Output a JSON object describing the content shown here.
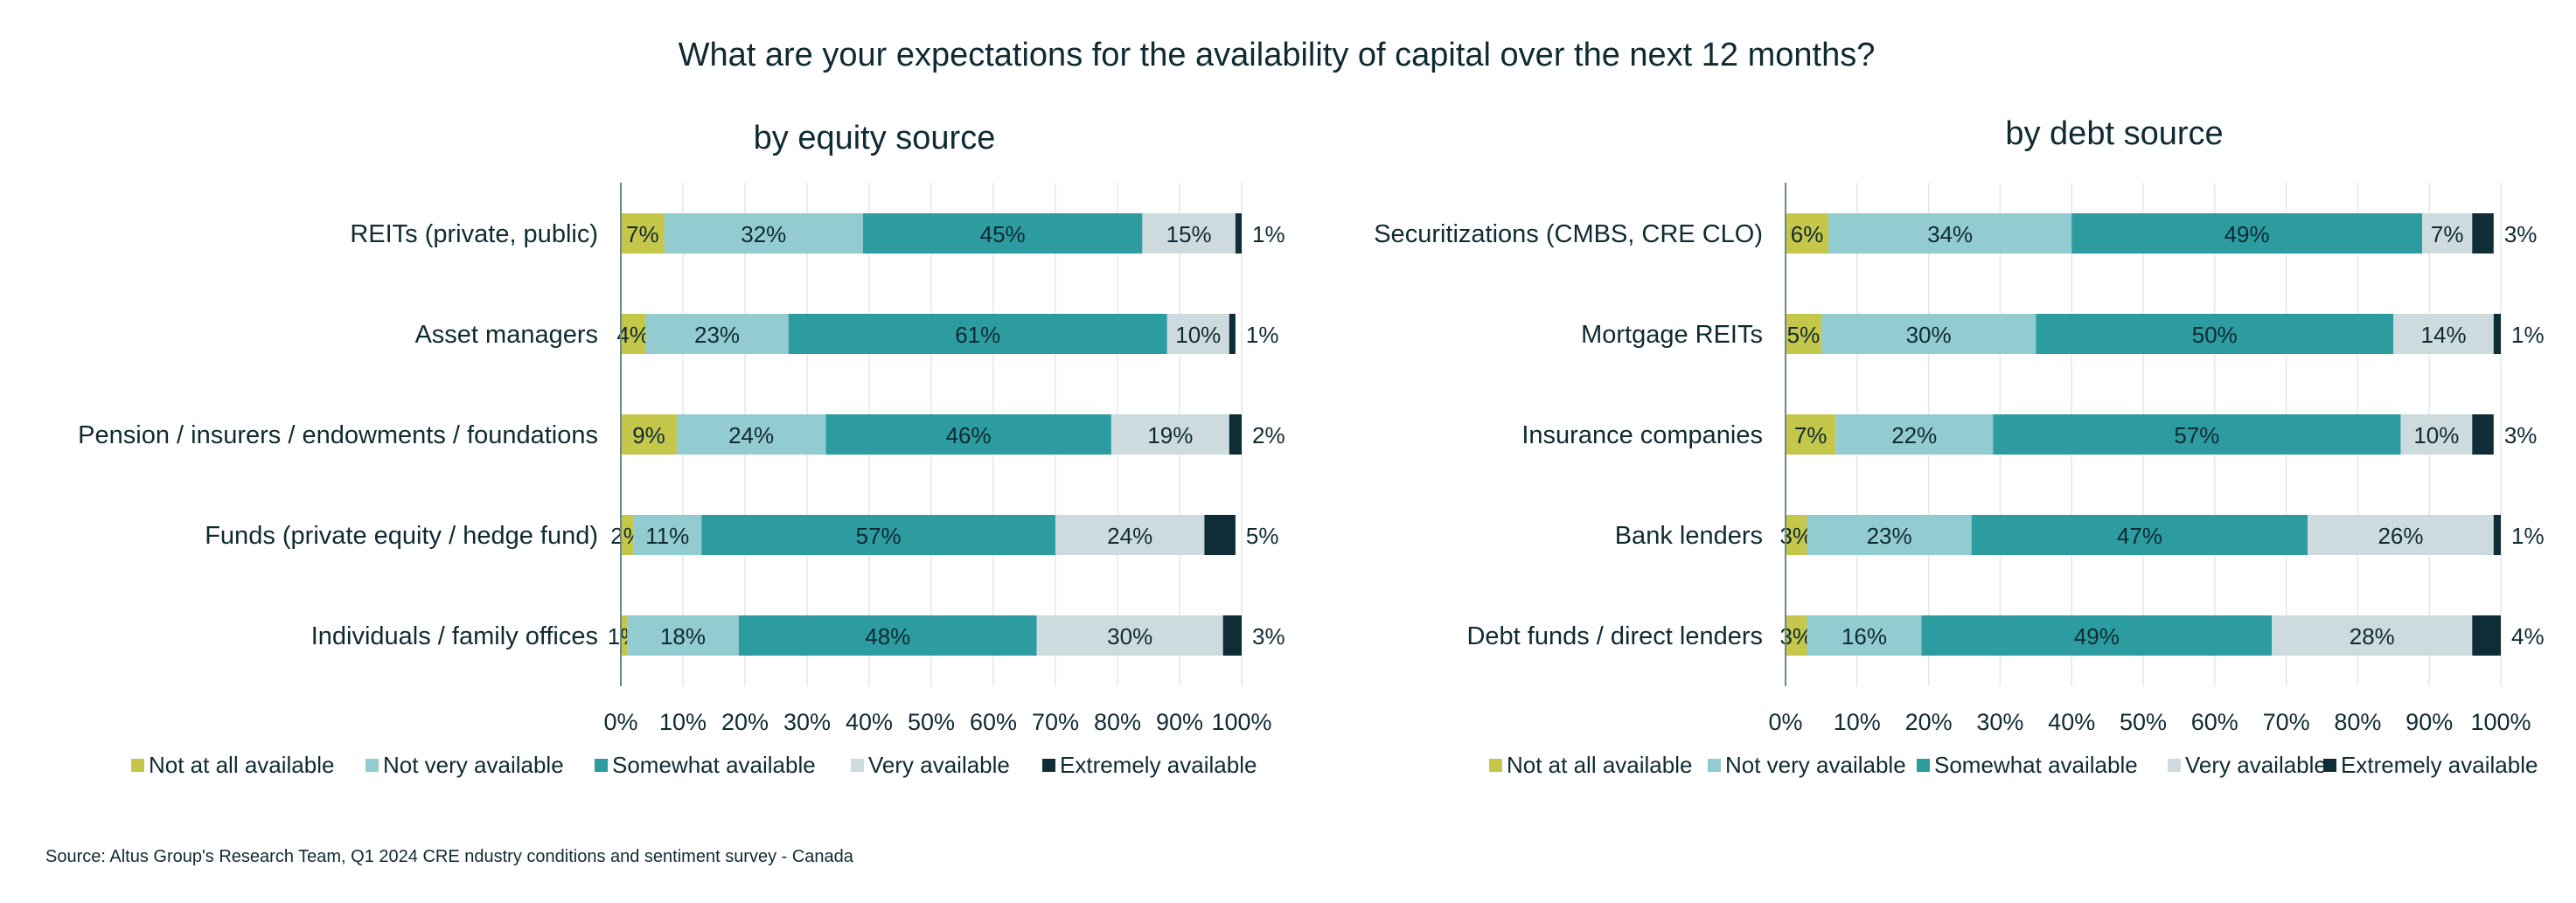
{
  "title": "What are your expectations for the availability of capital over the next 12 months?",
  "source": "Source: Altus Group's Research Team, Q1 2024 CRE ndustry conditions and sentiment survey - Canada",
  "colors": {
    "Not at all available": "#c4c74a",
    "Not very available": "#92cbd0",
    "Somewhat available": "#2c9ca0",
    "Very available": "#cddbdf",
    "Extremely available": "#0f2d36",
    "text": "#0f2a33",
    "grid": "#e3e8ea",
    "axis": "#6a8a8a"
  },
  "chart_data": [
    {
      "type": "bar",
      "orientation": "horizontal",
      "stacked": true,
      "title": "by equity source",
      "categories": [
        "REITs (private, public)",
        "Asset managers",
        "Pension / insurers / endowments / foundations",
        "Funds (private equity / hedge fund)",
        "Individuals / family offices"
      ],
      "series": [
        {
          "name": "Not at all available",
          "values": [
            7,
            4,
            9,
            2,
            1
          ],
          "labels": [
            "7%",
            "4%",
            "9%",
            "2%",
            "1%"
          ]
        },
        {
          "name": "Not very available",
          "values": [
            32,
            23,
            24,
            11,
            18
          ],
          "labels": [
            "32%",
            "23%",
            "24%",
            "11%",
            "18%"
          ]
        },
        {
          "name": "Somewhat available",
          "values": [
            45,
            61,
            46,
            57,
            48
          ],
          "labels": [
            "45%",
            "61%",
            "46%",
            "57%",
            "48%"
          ]
        },
        {
          "name": "Very available",
          "values": [
            15,
            10,
            19,
            24,
            30
          ],
          "labels": [
            "15%",
            "10%",
            "19%",
            "24%",
            "30%"
          ]
        },
        {
          "name": "Extremely available",
          "values": [
            1,
            1,
            2,
            5,
            3
          ],
          "labels": [
            "1%",
            "1%",
            "2%",
            "5%",
            "3%"
          ]
        }
      ],
      "xlim": [
        0,
        100
      ],
      "xticks": [
        "0%",
        "10%",
        "20%",
        "30%",
        "40%",
        "50%",
        "60%",
        "70%",
        "80%",
        "90%",
        "100%"
      ],
      "grid": true,
      "legend": "bottom"
    },
    {
      "type": "bar",
      "orientation": "horizontal",
      "stacked": true,
      "title": "by debt source",
      "categories": [
        "Securitizations (CMBS, CRE CLO)",
        "Mortgage REITs",
        "Insurance companies",
        "Bank lenders",
        "Debt funds / direct lenders"
      ],
      "series": [
        {
          "name": "Not at all available",
          "values": [
            6,
            5,
            7,
            3,
            3
          ],
          "labels": [
            "6%",
            "5%",
            "7%",
            "3%",
            "3%"
          ]
        },
        {
          "name": "Not very available",
          "values": [
            34,
            30,
            22,
            23,
            16
          ],
          "labels": [
            "34%",
            "30%",
            "22%",
            "23%",
            "16%"
          ]
        },
        {
          "name": "Somewhat available",
          "values": [
            49,
            50,
            57,
            47,
            49
          ],
          "labels": [
            "49%",
            "50%",
            "57%",
            "47%",
            "49%"
          ]
        },
        {
          "name": "Very available",
          "values": [
            7,
            14,
            10,
            26,
            28
          ],
          "labels": [
            "7%",
            "14%",
            "10%",
            "26%",
            "28%"
          ]
        },
        {
          "name": "Extremely available",
          "values": [
            3,
            1,
            3,
            1,
            4
          ],
          "labels": [
            "3%",
            "1%",
            "3%",
            "1%",
            "4%"
          ]
        }
      ],
      "xlim": [
        0,
        100
      ],
      "xticks": [
        "0%",
        "10%",
        "20%",
        "30%",
        "40%",
        "50%",
        "60%",
        "70%",
        "80%",
        "90%",
        "100%"
      ],
      "grid": true,
      "legend": "bottom"
    }
  ]
}
